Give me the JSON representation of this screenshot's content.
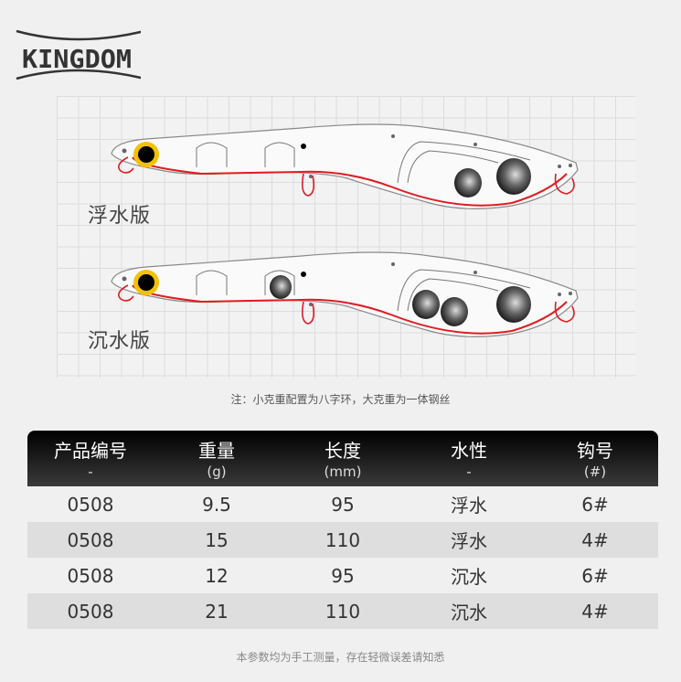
{
  "brand": {
    "logo_text": "KINGDOM"
  },
  "diagram": {
    "variants": [
      {
        "label": "浮水版"
      },
      {
        "label": "沉水版"
      }
    ],
    "note": "注：小克重配置为八字环，大克重为一体钢丝",
    "colors": {
      "wire": "#e01b24",
      "eye": "#f2c200",
      "outline": "#777777"
    }
  },
  "table": {
    "columns": [
      {
        "label": "产品编号",
        "unit": "-"
      },
      {
        "label": "重量",
        "unit": "(g)"
      },
      {
        "label": "长度",
        "unit": "(mm)"
      },
      {
        "label": "水性",
        "unit": "-"
      },
      {
        "label": "钩号",
        "unit": "(#)"
      }
    ],
    "rows": [
      [
        "0508",
        "9.5",
        "95",
        "浮水",
        "6#"
      ],
      [
        "0508",
        "15",
        "110",
        "浮水",
        "4#"
      ],
      [
        "0508",
        "12",
        "95",
        "沉水",
        "6#"
      ],
      [
        "0508",
        "21",
        "110",
        "沉水",
        "4#"
      ]
    ]
  },
  "footer": "本参数均为手工测量，存在轻微误差请知悉"
}
